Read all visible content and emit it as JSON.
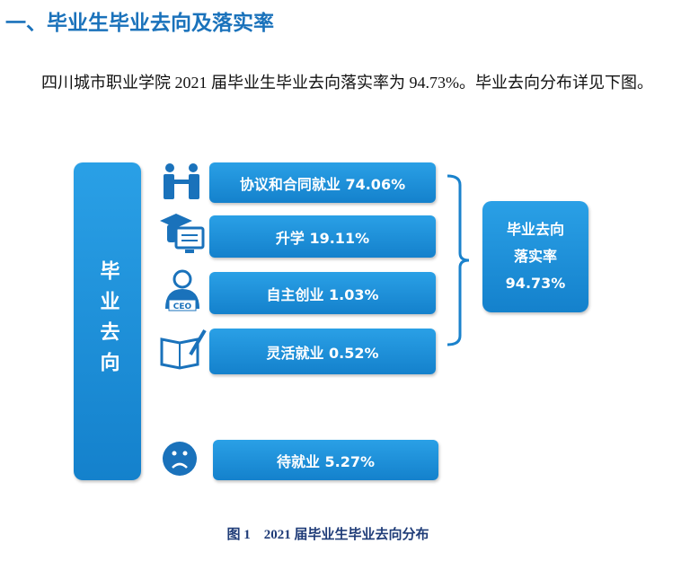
{
  "section": {
    "title": "一、毕业生毕业去向及落实率"
  },
  "paragraph": "四川城市职业学院 2021 届毕业生毕业去向落实率为 94.73%。毕业去向分布详见下图。",
  "diagram": {
    "side_label": "毕业去向",
    "items": [
      {
        "label": "协议和合同就业 74.06%"
      },
      {
        "label": "升学 19.11%"
      },
      {
        "label": "自主创业 1.03%"
      },
      {
        "label": "灵活就业 0.52%"
      },
      {
        "label": "待就业 5.27%"
      }
    ],
    "summary": [
      "毕业去向",
      "落实率",
      "94.73%"
    ],
    "icon_text": "CEO"
  },
  "figure": {
    "caption": "图 1　2021 届毕业生毕业去向分布"
  }
}
